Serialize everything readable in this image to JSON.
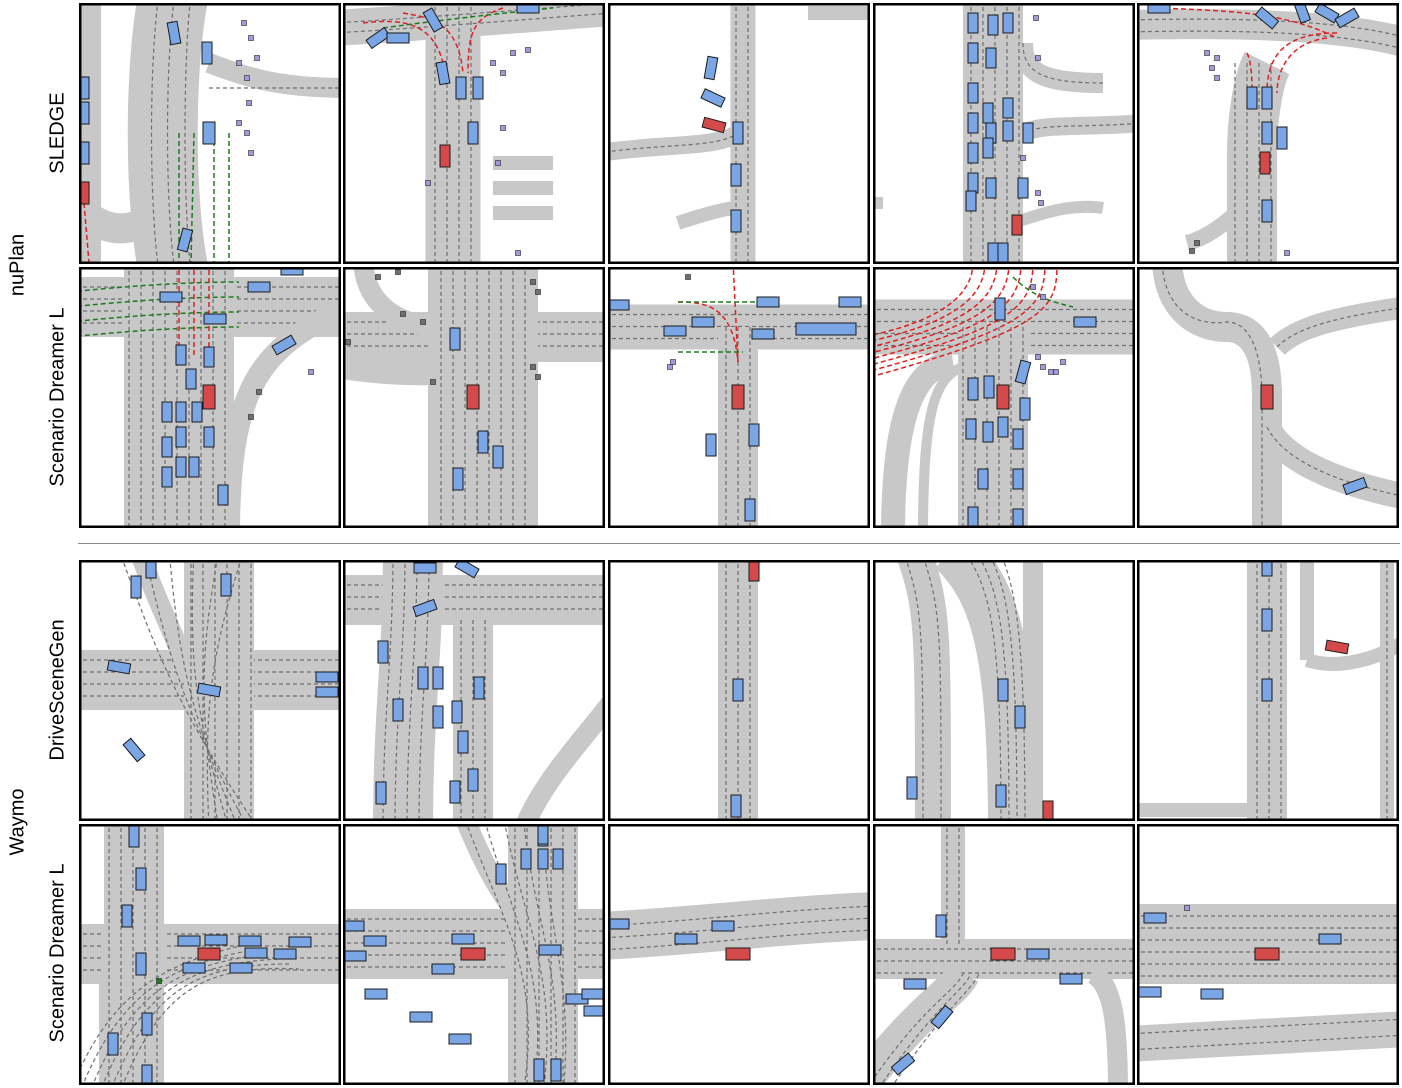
{
  "sections": [
    {
      "dataset": "nuPlan",
      "rows": [
        "SLEDGE",
        "Scenario Dreamer L"
      ]
    },
    {
      "dataset": "Waymo",
      "rows": [
        "DriveSceneGen",
        "Scenario Dreamer L"
      ]
    }
  ],
  "legend_colors": {
    "road": "#c8c8c8",
    "lane_centerline": "#6f6f6f",
    "agent_vehicle": "#7aa6e6",
    "ego_vehicle": "#d44a4a",
    "pedestrian": "#a796e0",
    "static_object": "#707070",
    "red_route": "#e02020",
    "green_route": "#1f7a1f"
  },
  "columns_per_row": 5
}
